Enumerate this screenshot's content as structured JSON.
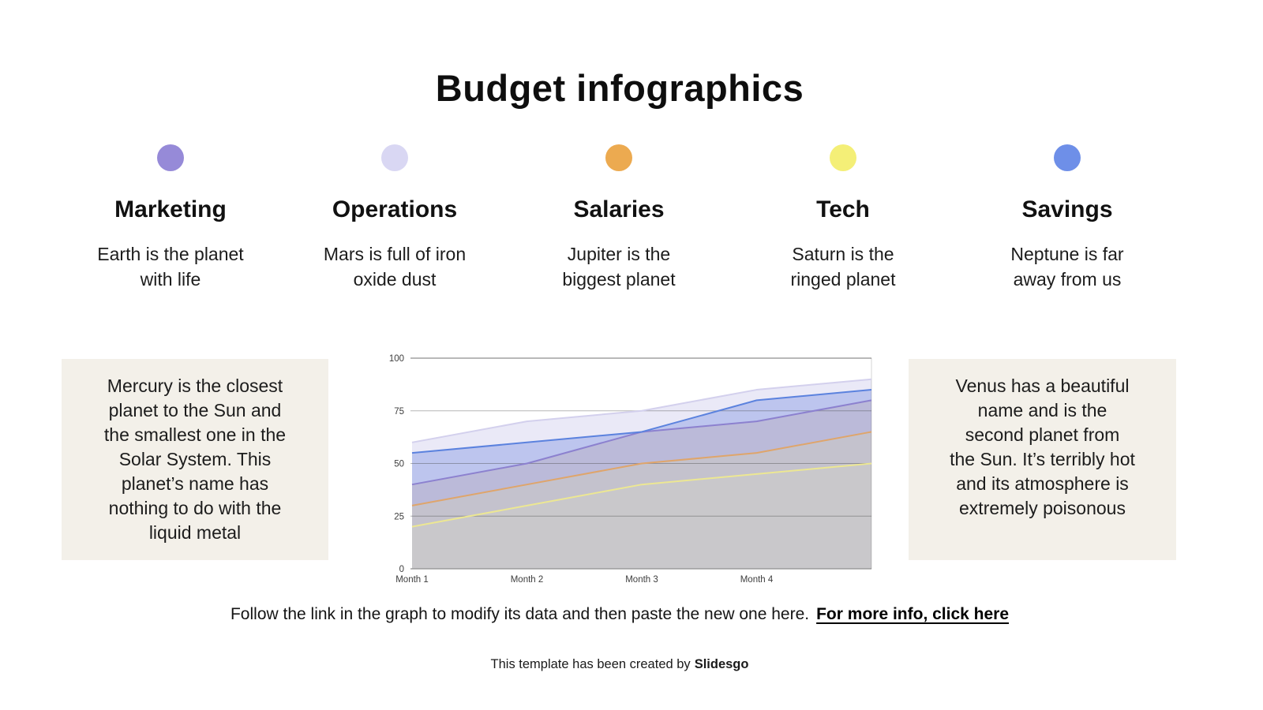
{
  "slide": {
    "title": "Budget infographics",
    "categories": [
      {
        "name": "Marketing",
        "description": "Earth is the planet\nwith life",
        "dot_color": "#968ad8"
      },
      {
        "name": "Operations",
        "description": "Mars is full of iron\noxide dust",
        "dot_color": "#d9d7f3"
      },
      {
        "name": "Salaries",
        "description": "Jupiter is the\nbiggest planet",
        "dot_color": "#ecaa50"
      },
      {
        "name": "Tech",
        "description": "Saturn is the\nringed planet",
        "dot_color": "#f4ef77"
      },
      {
        "name": "Savings",
        "description": "Neptune is far\naway from us",
        "dot_color": "#6e8fe8"
      }
    ],
    "left_note": "Mercury is the closest\nplanet to the Sun and\nthe smallest one in the\nSolar System. This\nplanet’s name has\nnothing to do with the\nliquid metal",
    "right_note": "Venus has a beautiful\nname and is the\nsecond planet from\nthe Sun. It’s terribly hot\nand its atmosphere is\nextremely poisonous",
    "note_bg": "#f3f0e9",
    "footer": {
      "text": "Follow the link in the graph to modify its data and then paste the new one here.",
      "link": "For more info, click here"
    },
    "credit": {
      "text": "This template has been created by",
      "brand": "Slidesgo"
    }
  },
  "chart_data": {
    "type": "area",
    "title": "",
    "xlabel": "",
    "ylabel": "",
    "x_labels": [
      "Month 1",
      "Month 2",
      "Month 3",
      "Month 4"
    ],
    "n_points": 5,
    "yticks": [
      0,
      25,
      50,
      75,
      100
    ],
    "ylim": [
      0,
      100
    ],
    "grid": true,
    "legend_position": "none",
    "series": [
      {
        "name": "Tech",
        "color": "#ece793",
        "band_fill": "#c9c8cb",
        "values": [
          20,
          30,
          40,
          45,
          50
        ]
      },
      {
        "name": "Salaries",
        "color": "#dfa56b",
        "band_fill": "#c4c2cd",
        "values": [
          30,
          40,
          50,
          55,
          65
        ]
      },
      {
        "name": "Marketing",
        "color": "#8c81cf",
        "band_fill": "#bbbad9",
        "values": [
          40,
          50,
          65,
          70,
          80
        ]
      },
      {
        "name": "Savings",
        "color": "#5b82de",
        "band_fill": "#bdc5ee",
        "values": [
          55,
          60,
          65,
          80,
          85
        ]
      },
      {
        "name": "Operations",
        "color": "#d3d0ed",
        "band_fill": "#eae9f7",
        "values": [
          60,
          70,
          75,
          85,
          90
        ]
      }
    ]
  }
}
